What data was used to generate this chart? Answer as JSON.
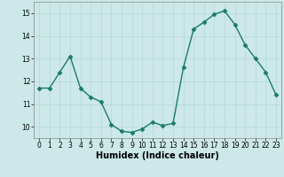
{
  "x": [
    0,
    1,
    2,
    3,
    4,
    5,
    6,
    7,
    8,
    9,
    10,
    11,
    12,
    13,
    14,
    15,
    16,
    17,
    18,
    19,
    20,
    21,
    22,
    23
  ],
  "y": [
    11.7,
    11.7,
    12.4,
    13.1,
    11.7,
    11.3,
    11.1,
    10.1,
    9.8,
    9.75,
    9.9,
    10.2,
    10.05,
    10.15,
    12.6,
    14.3,
    14.6,
    14.95,
    15.1,
    14.5,
    13.6,
    13.0,
    12.4,
    11.4
  ],
  "line_color": "#1a7a6e",
  "marker": "D",
  "markersize": 2.5,
  "linewidth": 1.0,
  "xlabel": "Humidex (Indice chaleur)",
  "xlabel_fontsize": 7,
  "xlim": [
    -0.5,
    23.5
  ],
  "ylim": [
    9.5,
    15.5
  ],
  "yticks": [
    10,
    11,
    12,
    13,
    14,
    15
  ],
  "xticks": [
    0,
    1,
    2,
    3,
    4,
    5,
    6,
    7,
    8,
    9,
    10,
    11,
    12,
    13,
    14,
    15,
    16,
    17,
    18,
    19,
    20,
    21,
    22,
    23
  ],
  "xtick_labels": [
    "0",
    "1",
    "2",
    "3",
    "4",
    "5",
    "6",
    "7",
    "8",
    "9",
    "10",
    "11",
    "12",
    "13",
    "14",
    "15",
    "16",
    "17",
    "18",
    "19",
    "20",
    "21",
    "22",
    "23"
  ],
  "background_color": "#cce8e8",
  "grid_color": "#b8d8d8",
  "tick_fontsize": 5.5,
  "grid_linewidth": 0.5,
  "spine_color": "#888888"
}
